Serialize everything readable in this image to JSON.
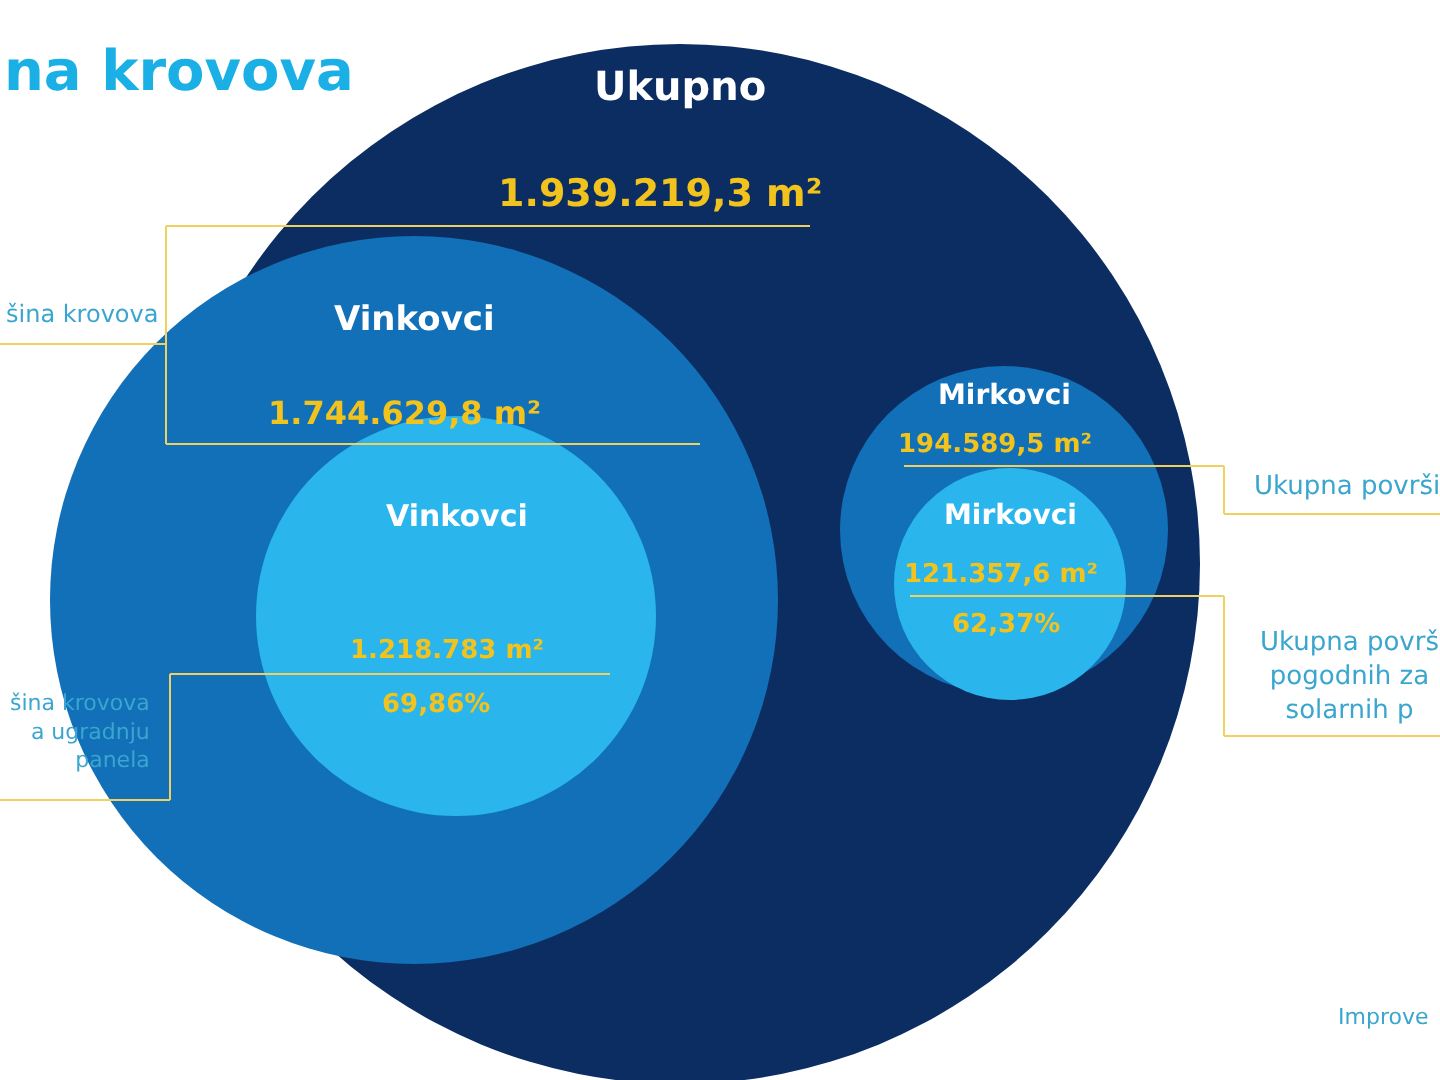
{
  "chart_data": {
    "type": "other",
    "title": "na krovova",
    "categories": [
      "Ukupno",
      "Vinkovci",
      "Vinkovci",
      "Mirkovci",
      "Mirkovci"
    ],
    "values": [
      1939219.3,
      1744629.8,
      1218783,
      194589.5,
      121357.6
    ],
    "value_labels": [
      "1.939.219,3 m²",
      "1.744.629,8 m²",
      "1.218.783 m²",
      "194.589,5 m²",
      "121.357,6 m²"
    ],
    "colors": [
      "#0c2d62",
      "#1170b8",
      "#2ab5ec",
      "#1170b8",
      "#2ab5ec"
    ],
    "annotations": [
      "šina krovova",
      "šina krovova\na ugradnju\npanela",
      "69,86%",
      "Ukupna površi",
      "Ukupna površ\npogodnih za\nsolarnih p",
      "62,37%",
      "Improve"
    ]
  }
}
